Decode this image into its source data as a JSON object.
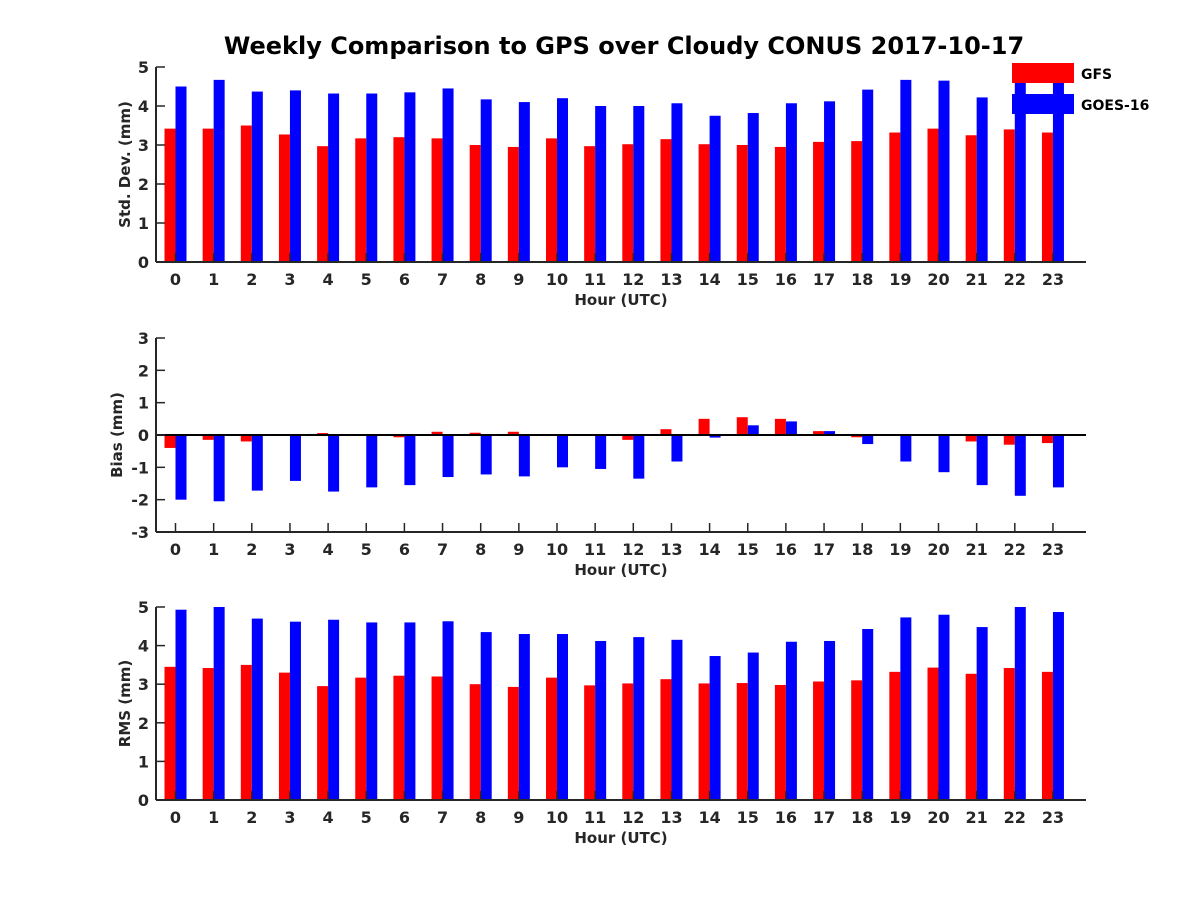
{
  "chart_data": [
    {
      "type": "bar",
      "title": "Weekly Comparison to GPS over Cloudy CONUS 2017-10-17",
      "xlabel": "Hour (UTC)",
      "ylabel": "Std. Dev. (mm)",
      "ylim": [
        0,
        5
      ],
      "yticks": [
        "0",
        "1",
        "2",
        "3",
        "4",
        "5"
      ],
      "categories": [
        "0",
        "1",
        "2",
        "3",
        "4",
        "5",
        "6",
        "7",
        "8",
        "9",
        "10",
        "11",
        "12",
        "13",
        "14",
        "15",
        "16",
        "17",
        "18",
        "19",
        "20",
        "21",
        "22",
        "23"
      ],
      "legend": "top-right",
      "series": [
        {
          "name": "GFS",
          "color": "#ff0000",
          "values": [
            3.42,
            3.42,
            3.5,
            3.27,
            2.97,
            3.17,
            3.2,
            3.17,
            3.0,
            2.95,
            3.17,
            2.97,
            3.02,
            3.15,
            3.02,
            3.0,
            2.95,
            3.08,
            3.1,
            3.32,
            3.42,
            3.25,
            3.4,
            3.32
          ]
        },
        {
          "name": "GOES-16",
          "color": "#0000ff",
          "values": [
            4.5,
            4.67,
            4.37,
            4.4,
            4.32,
            4.32,
            4.35,
            4.45,
            4.17,
            4.1,
            4.2,
            4.0,
            4.0,
            4.07,
            3.75,
            3.82,
            4.07,
            4.12,
            4.42,
            4.67,
            4.65,
            4.22,
            4.87,
            4.7
          ]
        }
      ]
    },
    {
      "type": "bar",
      "xlabel": "Hour (UTC)",
      "ylabel": "Bias (mm)",
      "ylim": [
        -3,
        3
      ],
      "yticks": [
        "-3",
        "-2",
        "-1",
        "0",
        "1",
        "2",
        "3"
      ],
      "categories": [
        "0",
        "1",
        "2",
        "3",
        "4",
        "5",
        "6",
        "7",
        "8",
        "9",
        "10",
        "11",
        "12",
        "13",
        "14",
        "15",
        "16",
        "17",
        "18",
        "19",
        "20",
        "21",
        "22",
        "23"
      ],
      "series": [
        {
          "name": "GFS",
          "color": "#ff0000",
          "values": [
            -0.4,
            -0.15,
            -0.2,
            0.03,
            0.06,
            0.02,
            -0.07,
            0.1,
            0.07,
            0.1,
            -0.03,
            -0.03,
            -0.15,
            0.18,
            0.5,
            0.55,
            0.5,
            0.12,
            -0.07,
            0.0,
            0.0,
            -0.2,
            -0.3,
            -0.25
          ]
        },
        {
          "name": "GOES-16",
          "color": "#0000ff",
          "values": [
            -2.0,
            -2.05,
            -1.72,
            -1.42,
            -1.75,
            -1.62,
            -1.55,
            -1.3,
            -1.22,
            -1.28,
            -1.0,
            -1.05,
            -1.35,
            -0.82,
            -0.08,
            0.3,
            0.42,
            0.12,
            -0.28,
            -0.82,
            -1.15,
            -1.55,
            -1.88,
            -1.62
          ]
        }
      ]
    },
    {
      "type": "bar",
      "xlabel": "Hour (UTC)",
      "ylabel": "RMS (mm)",
      "ylim": [
        0,
        5
      ],
      "yticks": [
        "0",
        "1",
        "2",
        "3",
        "4",
        "5"
      ],
      "categories": [
        "0",
        "1",
        "2",
        "3",
        "4",
        "5",
        "6",
        "7",
        "8",
        "9",
        "10",
        "11",
        "12",
        "13",
        "14",
        "15",
        "16",
        "17",
        "18",
        "19",
        "20",
        "21",
        "22",
        "23"
      ],
      "series": [
        {
          "name": "GFS",
          "color": "#ff0000",
          "values": [
            3.45,
            3.42,
            3.5,
            3.3,
            2.95,
            3.17,
            3.22,
            3.2,
            3.0,
            2.93,
            3.17,
            2.97,
            3.02,
            3.13,
            3.02,
            3.03,
            2.98,
            3.07,
            3.1,
            3.32,
            3.43,
            3.27,
            3.42,
            3.32
          ]
        },
        {
          "name": "GOES-16",
          "color": "#0000ff",
          "values": [
            4.93,
            5.0,
            4.7,
            4.62,
            4.67,
            4.6,
            4.6,
            4.63,
            4.35,
            4.3,
            4.3,
            4.12,
            4.22,
            4.15,
            3.73,
            3.82,
            4.1,
            4.12,
            4.43,
            4.73,
            4.8,
            4.48,
            5.0,
            4.87
          ]
        }
      ]
    }
  ]
}
